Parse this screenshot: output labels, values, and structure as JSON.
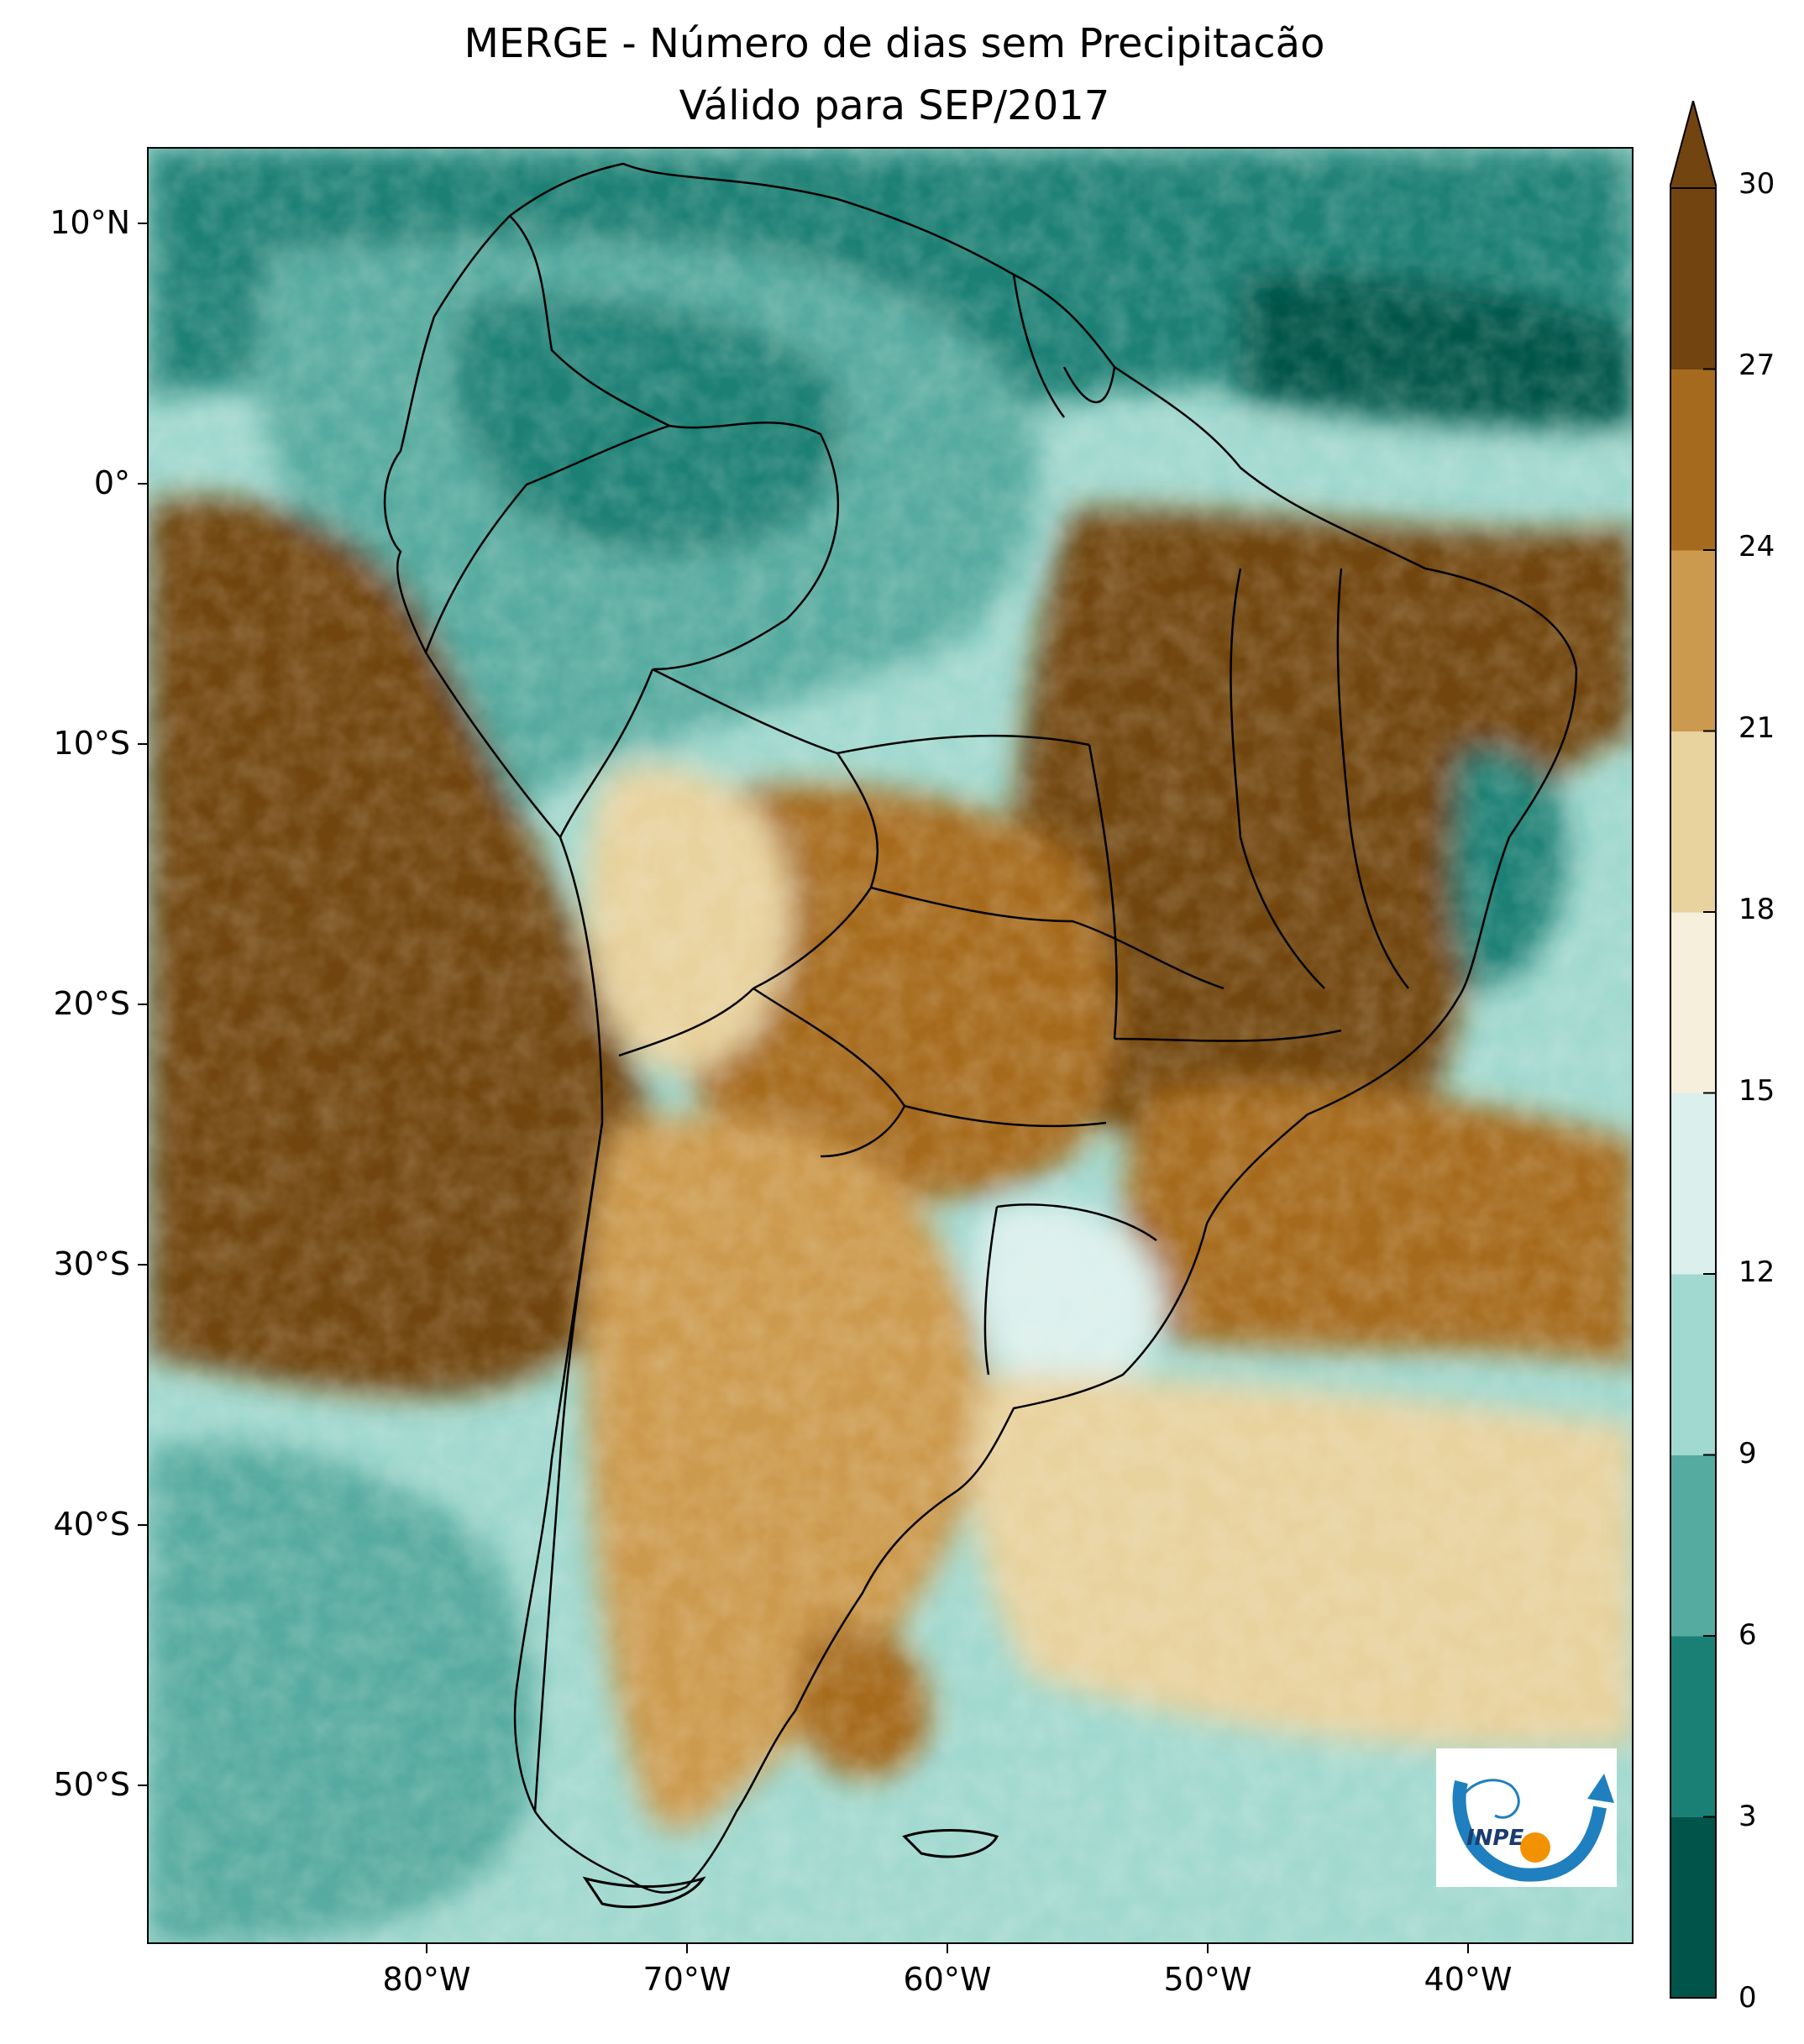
{
  "title_line1": "MERGE - Número de dias sem Precipitacão",
  "title_line2": "Válido para SEP/2017",
  "lat_ticks": [
    "10°N",
    "0°",
    "10°S",
    "20°S",
    "30°S",
    "40°S",
    "50°S"
  ],
  "lon_ticks": [
    "80°W",
    "70°W",
    "60°W",
    "50°W",
    "40°W"
  ],
  "colorbar_ticks": [
    "0",
    "3",
    "6",
    "9",
    "12",
    "15",
    "18",
    "21",
    "24",
    "27",
    "30"
  ],
  "colorbar_colors": [
    "#00544a",
    "#1a8075",
    "#56aba0",
    "#a1d9d0",
    "#dbf0ed",
    "#f5efdc",
    "#e8d29e",
    "#cc9a4e",
    "#a66a1e",
    "#714410"
  ],
  "colorbar_extend": "max",
  "logo_text": "INPE",
  "colors": {
    "land_dry": "#714410",
    "ocean_wet": "#1a8075"
  }
}
